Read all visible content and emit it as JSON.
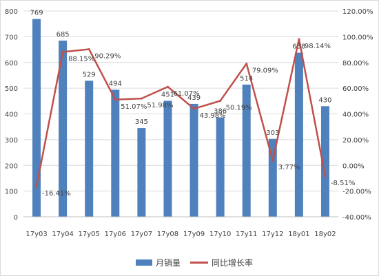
{
  "chart_data": {
    "type": "bar",
    "categories": [
      "17y03",
      "17y04",
      "17y05",
      "17y06",
      "17y07",
      "17y08",
      "17y09",
      "17y10",
      "17y11",
      "17y12",
      "18y01",
      "18y02"
    ],
    "series": [
      {
        "name": "月销量",
        "type": "bar",
        "axis": "left",
        "color": "#4f81bd",
        "values": [
          769,
          685,
          529,
          494,
          345,
          451,
          439,
          386,
          514,
          303,
          638,
          430
        ],
        "labels": [
          "769",
          "685",
          "529",
          "494",
          "345",
          "451",
          "439",
          "386",
          "514",
          "303",
          "638",
          "430"
        ]
      },
      {
        "name": "同比增长率",
        "type": "line",
        "axis": "right",
        "color": "#c0504d",
        "values": [
          -16.41,
          88.15,
          90.29,
          51.07,
          51.98,
          61.07,
          43.98,
          50.19,
          79.09,
          3.77,
          98.14,
          -8.51
        ],
        "labels": [
          "-16.41%",
          "88.15%",
          "90.29%",
          "51.07%",
          "51.98%",
          "61.07%",
          "43.98%",
          "50.19%",
          "79.09%",
          "3.77%",
          "98.14%",
          "-8.51%"
        ]
      }
    ],
    "y_left": {
      "ylim": [
        0,
        800
      ],
      "ticks": [
        "0",
        "100",
        "200",
        "300",
        "400",
        "500",
        "600",
        "700",
        "800"
      ]
    },
    "y_right": {
      "ylim": [
        -40,
        120
      ],
      "ticks": [
        "-40.00%",
        "-20.00%",
        "0.00%",
        "20.00%",
        "40.00%",
        "60.00%",
        "80.00%",
        "100.00%",
        "120.00%"
      ]
    },
    "grid": true,
    "legend": "bottom"
  }
}
